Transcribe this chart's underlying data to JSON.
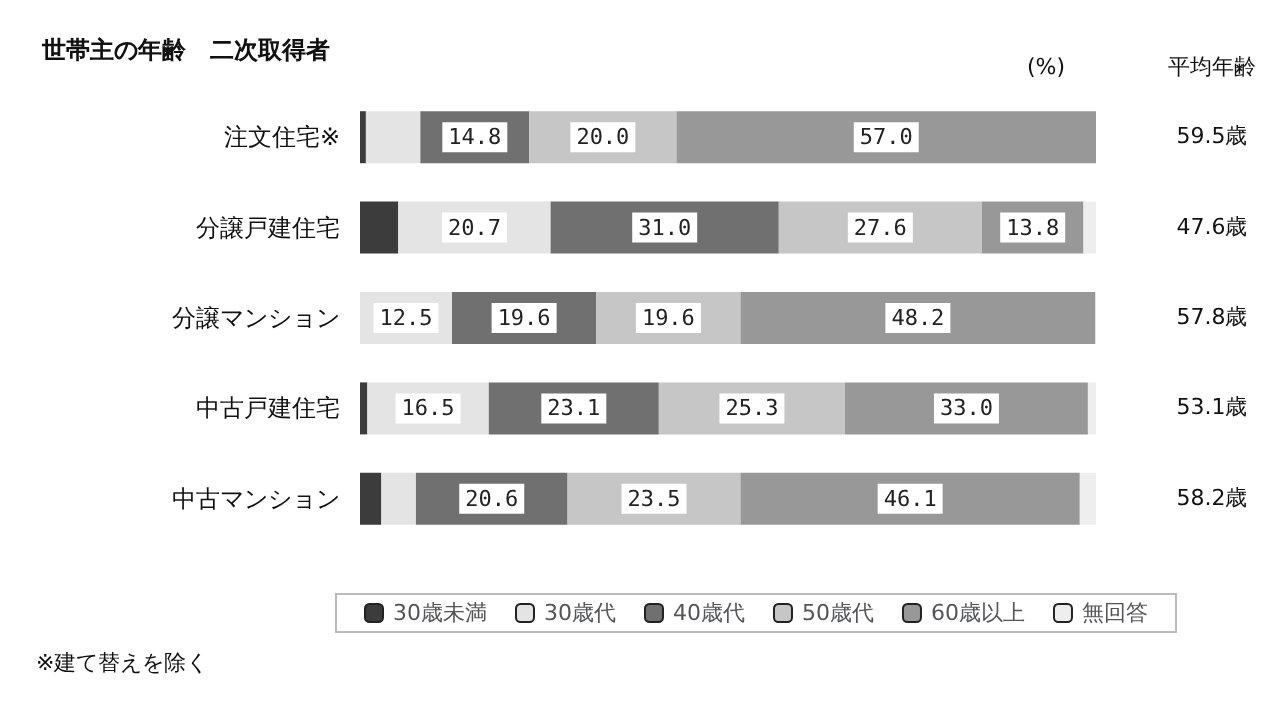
{
  "chart_data": {
    "type": "bar",
    "orientation": "horizontal",
    "stacked": true,
    "title": "世帯主の年齢　二次取得者",
    "categories": [
      "注文住宅※",
      "分譲戸建住宅",
      "分譲マンション",
      "中古戸建住宅",
      "中古マンション"
    ],
    "xlim": [
      0,
      100
    ],
    "tick_labels": "y",
    "grid": false,
    "legend": "bottom",
    "series": [
      {
        "name": "30歳未満",
        "color": "#3c3c3c",
        "values": [
          0.8,
          5.2,
          0,
          1.0,
          2.9
        ],
        "value_labels": [
          null,
          null,
          null,
          null,
          null
        ]
      },
      {
        "name": "30歳代",
        "color": "#e4e4e4",
        "values": [
          7.4,
          20.7,
          12.5,
          16.5,
          4.7
        ],
        "value_labels": [
          null,
          "20.7",
          "12.5",
          "16.5",
          null
        ]
      },
      {
        "name": "40歳代",
        "color": "#707070",
        "values": [
          14.8,
          31.0,
          19.6,
          23.1,
          20.6
        ],
        "value_labels": [
          "14.8",
          "31.0",
          "19.6",
          "23.1",
          "20.6"
        ]
      },
      {
        "name": "50歳代",
        "color": "#c6c6c6",
        "values": [
          20.0,
          27.6,
          19.6,
          25.3,
          23.5
        ],
        "value_labels": [
          "20.0",
          "27.6",
          "19.6",
          "25.3",
          "23.5"
        ]
      },
      {
        "name": "60歳以上",
        "color": "#989898",
        "values": [
          57.0,
          13.8,
          48.2,
          33.0,
          46.1
        ],
        "value_labels": [
          "57.0",
          "13.8",
          "48.2",
          "33.0",
          "46.1"
        ]
      },
      {
        "name": "無回答",
        "color": "#eeeeee",
        "values": [
          0,
          1.7,
          0,
          1.1,
          2.2
        ],
        "value_labels": [
          null,
          null,
          null,
          null,
          null
        ]
      }
    ],
    "annotations": [
      "(%)",
      "平均年齢",
      "59.5歳",
      "47.6歳",
      "57.8歳",
      "53.1歳",
      "58.2歳",
      "※建て替えを除く"
    ]
  }
}
